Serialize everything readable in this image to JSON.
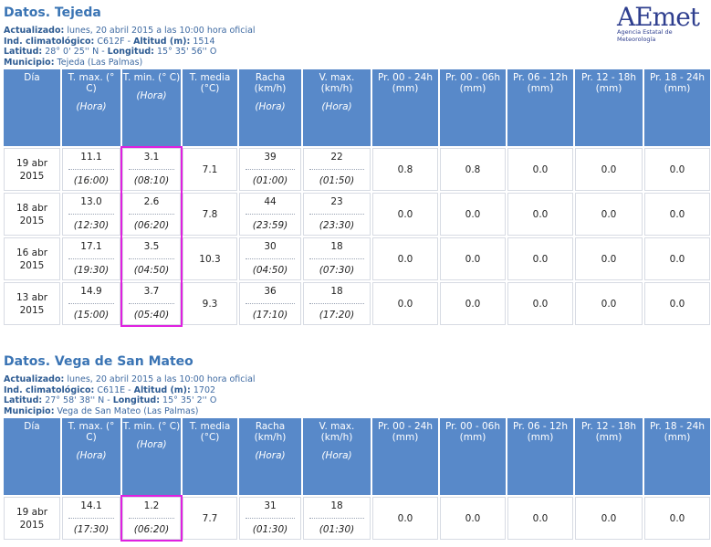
{
  "logo": {
    "text": "AEmet",
    "subtitle": "Agencia Estatal de Meteorología"
  },
  "headers": {
    "day": "Día",
    "tmax": "T. max. (° C)",
    "tmin": "T. min. (° C)",
    "tmed": "T. media (°C)",
    "racha": "Racha (km/h)",
    "vmax": "V. max. (km/h)",
    "pr1": "Pr. 00 - 24h (mm)",
    "pr2": "Pr. 00 - 06h (mm)",
    "pr3": "Pr. 06 - 12h (mm)",
    "pr4": "Pr. 12 - 18h (mm)",
    "pr5": "Pr. 18 - 24h (mm)",
    "hora": "(Hora)"
  },
  "station1": {
    "title": "Datos. Tejeda",
    "updated_label": "Actualizado:",
    "updated_value": "lunes, 20 abril 2015 a las 10:00 hora oficial",
    "ind_label": "Ind. climatológico:",
    "ind_value": "C612F",
    "alt_label": "Altitud (m):",
    "alt_value": "1514",
    "lat_label": "Latitud:",
    "lat_value": "28° 0' 25'' N",
    "lon_label": "Longitud:",
    "lon_value": "15° 35' 56'' O",
    "mun_label": "Municipio:",
    "mun_value": "Tejeda (Las Palmas)",
    "rows": [
      {
        "day1": "19 abr",
        "day2": "2015",
        "tmax": "11.1",
        "tmax_h": "(16:00)",
        "tmin": "3.1",
        "tmin_h": "(08:10)",
        "tmed": "7.1",
        "racha": "39",
        "racha_h": "(01:00)",
        "vmax": "22",
        "vmax_h": "(01:50)",
        "pr1": "0.8",
        "pr2": "0.8",
        "pr3": "0.0",
        "pr4": "0.0",
        "pr5": "0.0"
      },
      {
        "day1": "18 abr",
        "day2": "2015",
        "tmax": "13.0",
        "tmax_h": "(12:30)",
        "tmin": "2.6",
        "tmin_h": "(06:20)",
        "tmed": "7.8",
        "racha": "44",
        "racha_h": "(23:59)",
        "vmax": "23",
        "vmax_h": "(23:30)",
        "pr1": "0.0",
        "pr2": "0.0",
        "pr3": "0.0",
        "pr4": "0.0",
        "pr5": "0.0"
      },
      {
        "day1": "16 abr",
        "day2": "2015",
        "tmax": "17.1",
        "tmax_h": "(19:30)",
        "tmin": "3.5",
        "tmin_h": "(04:50)",
        "tmed": "10.3",
        "racha": "30",
        "racha_h": "(04:50)",
        "vmax": "18",
        "vmax_h": "(07:30)",
        "pr1": "0.0",
        "pr2": "0.0",
        "pr3": "0.0",
        "pr4": "0.0",
        "pr5": "0.0"
      },
      {
        "day1": "13 abr",
        "day2": "2015",
        "tmax": "14.9",
        "tmax_h": "(15:00)",
        "tmin": "3.7",
        "tmin_h": "(05:40)",
        "tmed": "9.3",
        "racha": "36",
        "racha_h": "(17:10)",
        "vmax": "18",
        "vmax_h": "(17:20)",
        "pr1": "0.0",
        "pr2": "0.0",
        "pr3": "0.0",
        "pr4": "0.0",
        "pr5": "0.0"
      }
    ]
  },
  "station2": {
    "title": "Datos. Vega de San Mateo",
    "updated_label": "Actualizado:",
    "updated_value": "lunes, 20 abril 2015 a las 10:00 hora oficial",
    "ind_label": "Ind. climatológico:",
    "ind_value": "C611E",
    "alt_label": "Altitud (m):",
    "alt_value": "1702",
    "lat_label": "Latitud:",
    "lat_value": "27° 58' 38'' N",
    "lon_label": "Longitud:",
    "lon_value": "15° 35' 2'' O",
    "mun_label": "Municipio:",
    "mun_value": "Vega de San Mateo (Las Palmas)",
    "rows": [
      {
        "day1": "19 abr",
        "day2": "2015",
        "tmax": "14.1",
        "tmax_h": "(17:30)",
        "tmin": "1.2",
        "tmin_h": "(06:20)",
        "tmed": "7.7",
        "racha": "31",
        "racha_h": "(01:30)",
        "vmax": "18",
        "vmax_h": "(01:30)",
        "pr1": "0.0",
        "pr2": "0.0",
        "pr3": "0.0",
        "pr4": "0.0",
        "pr5": "0.0"
      }
    ]
  }
}
